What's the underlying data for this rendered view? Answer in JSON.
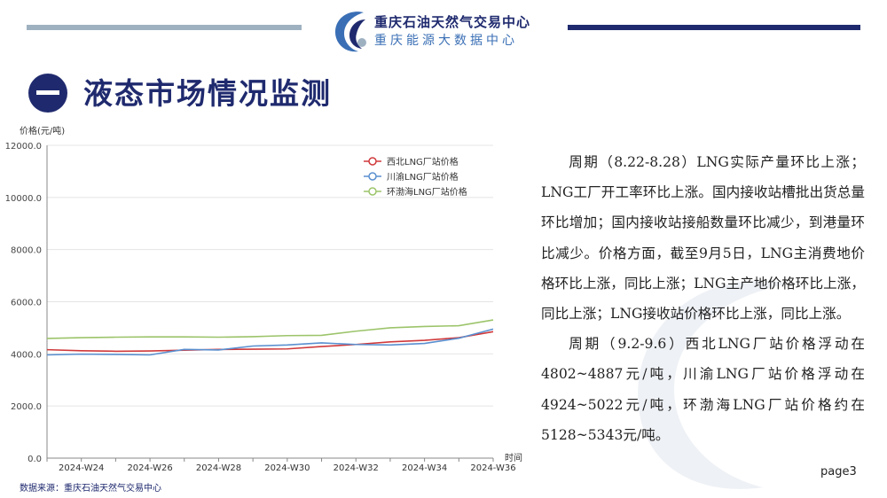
{
  "header": {
    "logo_line1": "重庆石油天然气交易中心",
    "logo_line2": "重庆能源大数据中心"
  },
  "section": {
    "number_glyph": "一",
    "title": "液态市场情况监测"
  },
  "chart_data": {
    "type": "line",
    "ylabel": "价格(元/吨)",
    "xlabel": "时间",
    "ylim": [
      0,
      12000
    ],
    "yticks": [
      "0.0",
      "2000.0",
      "4000.0",
      "6000.0",
      "8000.0",
      "10000.0",
      "12000.0"
    ],
    "x": [
      "2024-W23",
      "2024-W24",
      "2024-W25",
      "2024-W26",
      "2024-W27",
      "2024-W28",
      "2024-W29",
      "2024-W30",
      "2024-W31",
      "2024-W32",
      "2024-W33",
      "2024-W34",
      "2024-W35",
      "2024-W36"
    ],
    "xtick_labels": [
      "2024-W24",
      "2024-W26",
      "2024-W28",
      "2024-W30",
      "2024-W32",
      "2024-W34",
      "2024-W36"
    ],
    "legend_position": "top-right",
    "grid": "horizontal",
    "series": [
      {
        "name": "西北LNG厂站价格",
        "color": "#d0393b",
        "values": [
          4160,
          4120,
          4100,
          4110,
          4140,
          4170,
          4180,
          4190,
          4280,
          4360,
          4460,
          4520,
          4620,
          4850
        ]
      },
      {
        "name": "川渝LNG厂站价格",
        "color": "#5a8fcf",
        "values": [
          3960,
          3990,
          3980,
          3960,
          4170,
          4150,
          4300,
          4340,
          4420,
          4360,
          4340,
          4400,
          4600,
          4950
        ]
      },
      {
        "name": "环渤海LNG厂站价格",
        "color": "#9cc46a",
        "values": [
          4590,
          4620,
          4640,
          4650,
          4650,
          4640,
          4660,
          4700,
          4710,
          4870,
          5000,
          5050,
          5080,
          5300
        ]
      }
    ]
  },
  "paragraphs": [
    "周期（8.22-8.28）LNG实际产量环比上涨；LNG工厂开工率环比上涨。国内接收站槽批出货总量环比增加；国内接收站接船数量环比减少，到港量环比减少。价格方面，截至9月5日，LNG主消费地价格环比上涨，同比上涨；LNG主产地价格环比上涨，同比上涨；LNG接收站价格环比上涨，同比上涨。",
    "周期（9.2-9.6）西北LNG厂站价格浮动在4802~4887元/吨，川渝LNG厂站价格浮动在4924~5022元/吨，环渤海LNG厂站价格约在5128~5343元/吨。"
  ],
  "source": "数据来源：重庆石油天然气交易中心",
  "page_label": "page3"
}
